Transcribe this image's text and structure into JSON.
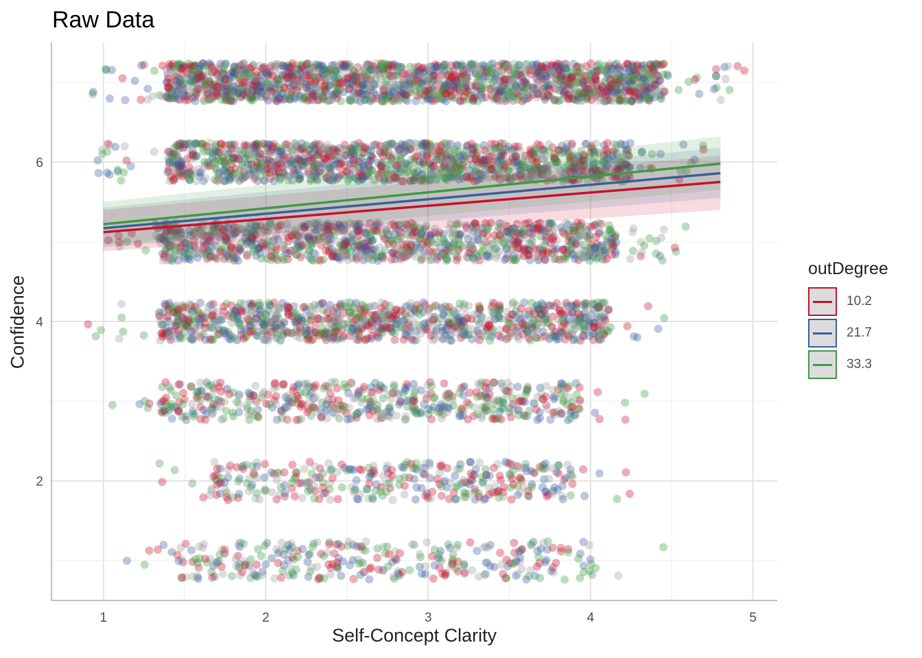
{
  "chart_data": {
    "type": "scatter",
    "title": "Raw Data",
    "xlabel": "Self-Concept Clarity",
    "ylabel": "Confidence",
    "xlim": [
      0.68,
      5.15
    ],
    "ylim": [
      0.5,
      7.5
    ],
    "x_ticks": [
      1,
      2,
      3,
      4,
      5
    ],
    "y_ticks": [
      2,
      4,
      6
    ],
    "grid": true,
    "legend": {
      "title": "outDegree",
      "position": "right",
      "entries": [
        "10.2",
        "21.7",
        "33.3"
      ]
    },
    "colors": {
      "10.2": "#c8102e",
      "21.7": "#3a5f9a",
      "33.3": "#3e9a44",
      "points_grey": "#9e9e9e"
    },
    "scatter_jitter": {
      "note_bands": "jittered points clustered around integer confidence levels",
      "bands": [
        {
          "y": 7,
          "x_range": [
            0.9,
            4.95
          ]
        },
        {
          "y": 6,
          "x_range": [
            0.95,
            4.7
          ]
        },
        {
          "y": 5,
          "x_range": [
            0.9,
            4.6
          ]
        },
        {
          "y": 4,
          "x_range": [
            0.9,
            4.55
          ]
        },
        {
          "y": 3,
          "x_range": [
            0.95,
            4.35
          ]
        },
        {
          "y": 2,
          "x_range": [
            1.3,
            4.25
          ]
        },
        {
          "y": 1,
          "x_range": [
            1.0,
            4.45
          ]
        }
      ]
    },
    "series": [
      {
        "name": "10.2",
        "x": [
          1.0,
          4.8
        ],
        "y": [
          5.12,
          5.75
        ],
        "ci_low": [
          4.88,
          5.4
        ],
        "ci_high": [
          5.4,
          6.08
        ]
      },
      {
        "name": "21.7",
        "x": [
          1.0,
          4.8
        ],
        "y": [
          5.17,
          5.86
        ],
        "ci_low": [
          4.93,
          5.55
        ],
        "ci_high": [
          5.43,
          6.18
        ]
      },
      {
        "name": "33.3",
        "x": [
          1.0,
          4.8
        ],
        "y": [
          5.22,
          5.98
        ],
        "ci_low": [
          4.96,
          5.65
        ],
        "ci_high": [
          5.5,
          6.32
        ]
      }
    ]
  }
}
